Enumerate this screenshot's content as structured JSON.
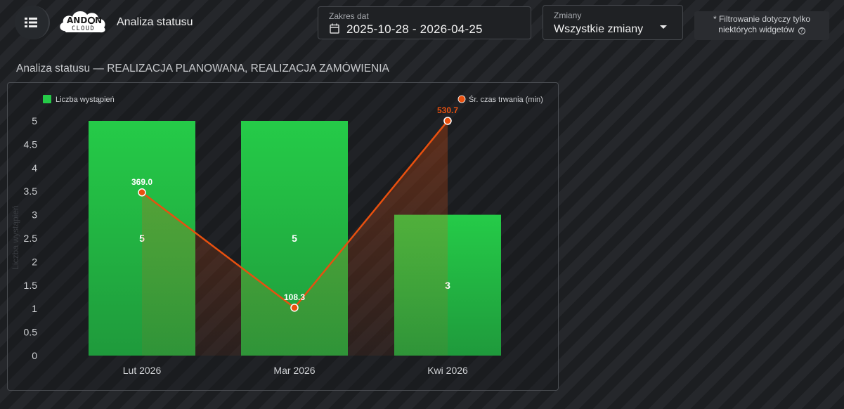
{
  "header": {
    "title": "Analiza statusu",
    "logo_top": "AND",
    "logo_bottom": "CLOUD",
    "logo_o": "O",
    "logo_n": "N"
  },
  "filters": {
    "date_range": {
      "label": "Zakres dat",
      "value": "2025-10-28 - 2026-04-25"
    },
    "shifts": {
      "label": "Zmiany",
      "value": "Wszystkie zmiany"
    },
    "note_line1": "* Filtrowanie dotyczy tylko",
    "note_line2": "niektórych widgetów",
    "note_icon": "question-circle-icon"
  },
  "section": {
    "title": "Analiza statusu — REALIZACJA PLANOWANA, REALIZACJA ZAMÓWIENIA"
  },
  "chart_data": {
    "type": "bar",
    "categories": [
      "Lut 2026",
      "Mar 2026",
      "Kwi 2026"
    ],
    "series": [
      {
        "name": "Liczba wystąpień",
        "type": "bar",
        "axis": "left",
        "values": [
          5,
          5,
          3
        ],
        "color": "#22c745"
      },
      {
        "name": "Śr. czas trwania (min)",
        "type": "line",
        "axis": "right",
        "values": [
          369.0,
          108.3,
          530.7
        ],
        "color": "#e8500f"
      }
    ],
    "bar_labels": [
      "5",
      "5",
      "3"
    ],
    "point_labels": [
      "369.0",
      "108.3",
      "530.7"
    ],
    "ylabel": "Liczba wystąpień",
    "ylim": [
      0,
      5
    ],
    "yticks": [
      "0",
      "0.5",
      "1",
      "1.5",
      "2",
      "2.5",
      "3",
      "3.5",
      "4",
      "4.5",
      "5"
    ],
    "y2lim": [
      0,
      530.7
    ],
    "legend": "top",
    "grid": false
  }
}
